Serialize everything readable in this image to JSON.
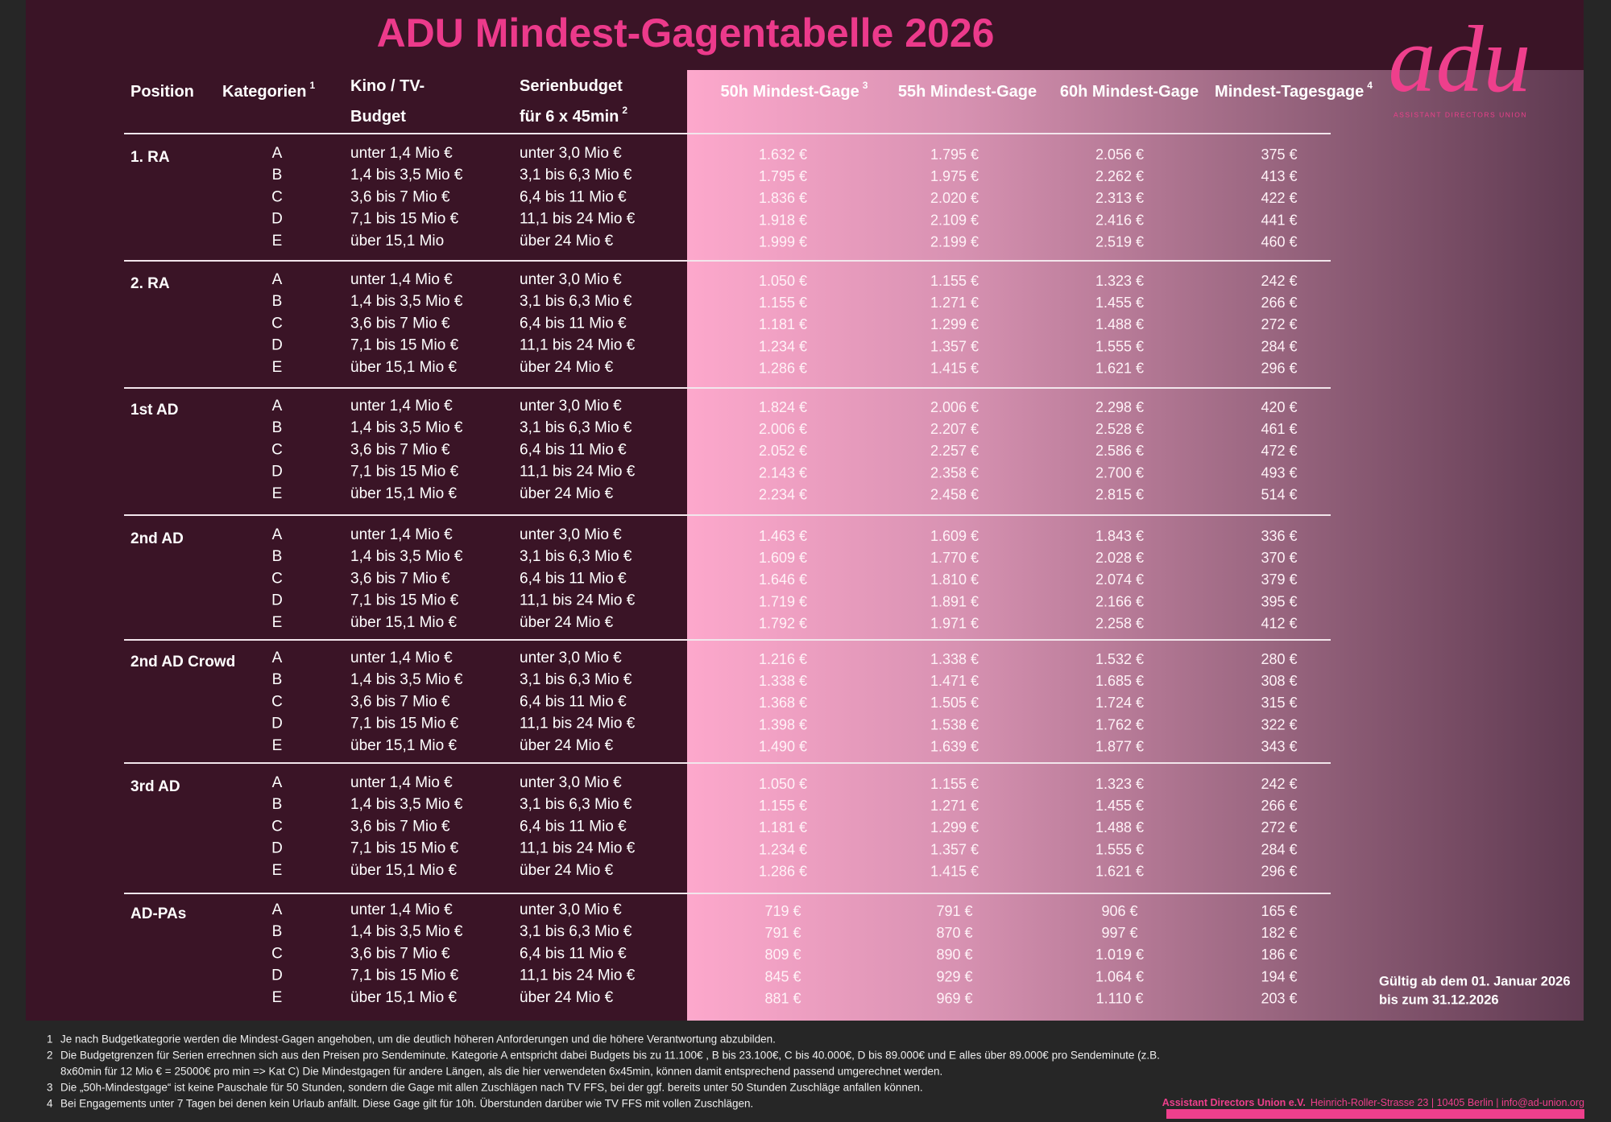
{
  "title": "ADU Mindest-Gagentabelle 2026",
  "logo": {
    "mark": "adu",
    "subtitle": "ASSISTANT DIRECTORS UNION"
  },
  "header": {
    "position": {
      "lines": [
        "Position"
      ]
    },
    "kategorien": {
      "lines": [
        "Kategorien"
      ],
      "note": "1"
    },
    "kino": {
      "lines": [
        "Kino / TV-",
        "Budget"
      ]
    },
    "serie": {
      "lines": [
        "Serienbudget",
        "für 6 x 45min"
      ],
      "note": "2"
    },
    "g50": {
      "lines": [
        "50h Mindest-Gage"
      ],
      "note": "3"
    },
    "g55": {
      "lines": [
        "55h Mindest-Gage"
      ]
    },
    "g60": {
      "lines": [
        "60h Mindest-Gage"
      ]
    },
    "tages": {
      "lines": [
        "Mindest-Tagesgage"
      ],
      "note": "4"
    }
  },
  "groups": [
    {
      "name": "1. RA",
      "rows": [
        [
          "A",
          "unter 1,4 Mio €",
          "unter 3,0 Mio €",
          "1.632 €",
          "1.795 €",
          "2.056 €",
          "375 €"
        ],
        [
          "B",
          "1,4 bis 3,5 Mio €",
          "3,1 bis 6,3 Mio €",
          "1.795 €",
          "1.975 €",
          "2.262 €",
          "413 €"
        ],
        [
          "C",
          "3,6 bis 7 Mio €",
          "6,4 bis 11 Mio €",
          "1.836 €",
          "2.020 €",
          "2.313 €",
          "422 €"
        ],
        [
          "D",
          "7,1 bis 15 Mio €",
          "11,1 bis 24 Mio €",
          "1.918 €",
          "2.109 €",
          "2.416 €",
          "441 €"
        ],
        [
          "E",
          "über 15,1 Mio",
          "über 24 Mio €",
          "1.999 €",
          "2.199 €",
          "2.519 €",
          "460 €"
        ]
      ]
    },
    {
      "name": "2. RA",
      "rows": [
        [
          "A",
          "unter 1,4 Mio €",
          "unter 3,0 Mio €",
          "1.050 €",
          "1.155 €",
          "1.323 €",
          "242 €"
        ],
        [
          "B",
          "1,4 bis 3,5 Mio €",
          "3,1 bis 6,3 Mio €",
          "1.155 €",
          "1.271 €",
          "1.455 €",
          "266 €"
        ],
        [
          "C",
          "3,6 bis 7 Mio €",
          "6,4 bis 11 Mio €",
          "1.181 €",
          "1.299 €",
          "1.488 €",
          "272 €"
        ],
        [
          "D",
          "7,1 bis 15 Mio €",
          "11,1 bis 24 Mio €",
          "1.234 €",
          "1.357 €",
          "1.555 €",
          "284 €"
        ],
        [
          "E",
          "über 15,1 Mio €",
          "über 24 Mio €",
          "1.286 €",
          "1.415 €",
          "1.621 €",
          "296 €"
        ]
      ]
    },
    {
      "name": "1st AD",
      "rows": [
        [
          "A",
          "unter 1,4 Mio €",
          "unter 3,0 Mio €",
          "1.824 €",
          "2.006 €",
          "2.298 €",
          "420 €"
        ],
        [
          "B",
          "1,4 bis 3,5 Mio €",
          "3,1 bis 6,3 Mio €",
          "2.006 €",
          "2.207 €",
          "2.528 €",
          "461 €"
        ],
        [
          "C",
          "3,6 bis 7 Mio €",
          "6,4 bis 11 Mio €",
          "2.052 €",
          "2.257 €",
          "2.586 €",
          "472 €"
        ],
        [
          "D",
          "7,1 bis 15 Mio €",
          "11,1 bis 24 Mio €",
          "2.143 €",
          "2.358 €",
          "2.700 €",
          "493 €"
        ],
        [
          "E",
          "über 15,1 Mio €",
          "über 24 Mio €",
          "2.234 €",
          "2.458 €",
          "2.815 €",
          "514 €"
        ]
      ]
    },
    {
      "name": "2nd AD",
      "rows": [
        [
          "A",
          "unter 1,4 Mio €",
          "unter 3,0 Mio €",
          "1.463 €",
          "1.609 €",
          "1.843 €",
          "336 €"
        ],
        [
          "B",
          "1,4 bis 3,5 Mio €",
          "3,1 bis 6,3 Mio €",
          "1.609 €",
          "1.770 €",
          "2.028 €",
          "370 €"
        ],
        [
          "C",
          "3,6 bis 7 Mio €",
          "6,4 bis 11 Mio €",
          "1.646 €",
          "1.810 €",
          "2.074 €",
          "379 €"
        ],
        [
          "D",
          "7,1 bis 15 Mio €",
          "11,1 bis 24 Mio €",
          "1.719 €",
          "1.891 €",
          "2.166 €",
          "395 €"
        ],
        [
          "E",
          "über 15,1 Mio €",
          "über 24 Mio €",
          "1.792 €",
          "1.971 €",
          "2.258 €",
          "412 €"
        ]
      ]
    },
    {
      "name": "2nd AD Crowd",
      "rows": [
        [
          "A",
          "unter 1,4 Mio €",
          "unter 3,0 Mio €",
          "1.216 €",
          "1.338 €",
          "1.532 €",
          "280 €"
        ],
        [
          "B",
          "1,4 bis 3,5 Mio €",
          "3,1 bis 6,3 Mio €",
          "1.338 €",
          "1.471 €",
          "1.685 €",
          "308 €"
        ],
        [
          "C",
          "3,6 bis 7 Mio €",
          "6,4 bis 11 Mio €",
          "1.368 €",
          "1.505 €",
          "1.724 €",
          "315 €"
        ],
        [
          "D",
          "7,1 bis 15 Mio €",
          "11,1 bis 24 Mio €",
          "1.398 €",
          "1.538 €",
          "1.762 €",
          "322 €"
        ],
        [
          "E",
          "über 15,1 Mio €",
          "über 24 Mio €",
          "1.490 €",
          "1.639 €",
          "1.877 €",
          "343 €"
        ]
      ]
    },
    {
      "name": "3rd AD",
      "rows": [
        [
          "A",
          "unter 1,4 Mio €",
          "unter 3,0 Mio €",
          "1.050 €",
          "1.155 €",
          "1.323 €",
          "242 €"
        ],
        [
          "B",
          "1,4 bis 3,5 Mio €",
          "3,1 bis 6,3 Mio €",
          "1.155 €",
          "1.271 €",
          "1.455 €",
          "266 €"
        ],
        [
          "C",
          "3,6 bis 7 Mio €",
          "6,4 bis 11 Mio €",
          "1.181 €",
          "1.299 €",
          "1.488 €",
          "272 €"
        ],
        [
          "D",
          "7,1 bis 15 Mio €",
          "11,1 bis 24 Mio €",
          "1.234 €",
          "1.357 €",
          "1.555 €",
          "284 €"
        ],
        [
          "E",
          "über 15,1 Mio €",
          "über 24 Mio €",
          "1.286 €",
          "1.415 €",
          "1.621 €",
          "296 €"
        ]
      ]
    },
    {
      "name": "AD-PAs",
      "rows": [
        [
          "A",
          "unter 1,4 Mio €",
          "unter 3,0 Mio €",
          "719 €",
          "791 €",
          "906 €",
          "165 €"
        ],
        [
          "B",
          "1,4 bis 3,5 Mio €",
          "3,1 bis 6,3 Mio €",
          "791 €",
          "870 €",
          "997 €",
          "182 €"
        ],
        [
          "C",
          "3,6 bis 7 Mio €",
          "6,4 bis 11 Mio €",
          "809 €",
          "890 €",
          "1.019 €",
          "186 €"
        ],
        [
          "D",
          "7,1 bis 15 Mio €",
          "11,1 bis 24 Mio €",
          "845 €",
          "929 €",
          "1.064 €",
          "194 €"
        ],
        [
          "E",
          "über 15,1 Mio €",
          "über 24 Mio €",
          "881 €",
          "969 €",
          "1.110 €",
          "203 €"
        ]
      ]
    }
  ],
  "validity": [
    "Gültig ab dem 01. Januar 2026",
    "bis zum 31.12.2026"
  ],
  "footnotes": [
    {
      "num": "1",
      "lines": [
        "Je nach Budgetkategorie werden die Mindest-Gagen angehoben, um die deutlich höheren Anforderungen und die höhere Verantwortung abzubilden."
      ]
    },
    {
      "num": "2",
      "lines": [
        "Die Budgetgrenzen für Serien errechnen sich aus den Preisen pro Sendeminute. Kategorie A entspricht dabei Budgets bis zu 11.100€ , B bis 23.100€, C bis 40.000€, D bis 89.000€ und E alles über 89.000€ pro Sendeminute (z.B.",
        "8x60min für 12 Mio € = 25000€ pro min => Kat C) Die Mindestgagen für andere Längen, als die hier verwendeten 6x45min, können damit entsprechend passend umgerechnet werden."
      ]
    },
    {
      "num": "3",
      "lines": [
        "Die „50h-Mindestgage“ ist keine Pauschale für 50 Stunden, sondern die Gage mit allen Zuschlägen nach TV FFS, bei der ggf. bereits unter 50 Stunden Zuschläge anfallen können."
      ]
    },
    {
      "num": "4",
      "lines": [
        "Bei Engagements unter 7 Tagen bei denen kein Urlaub anfällt. Diese Gage gilt für 10h. Überstunden darüber wie TV FFS mit vollen Zuschlägen."
      ]
    }
  ],
  "footer": {
    "org": "Assistant Directors Union e.V.",
    "address": "Heinrich-Roller-Strasse 23 | 10405 Berlin | info@ad-union.org"
  }
}
